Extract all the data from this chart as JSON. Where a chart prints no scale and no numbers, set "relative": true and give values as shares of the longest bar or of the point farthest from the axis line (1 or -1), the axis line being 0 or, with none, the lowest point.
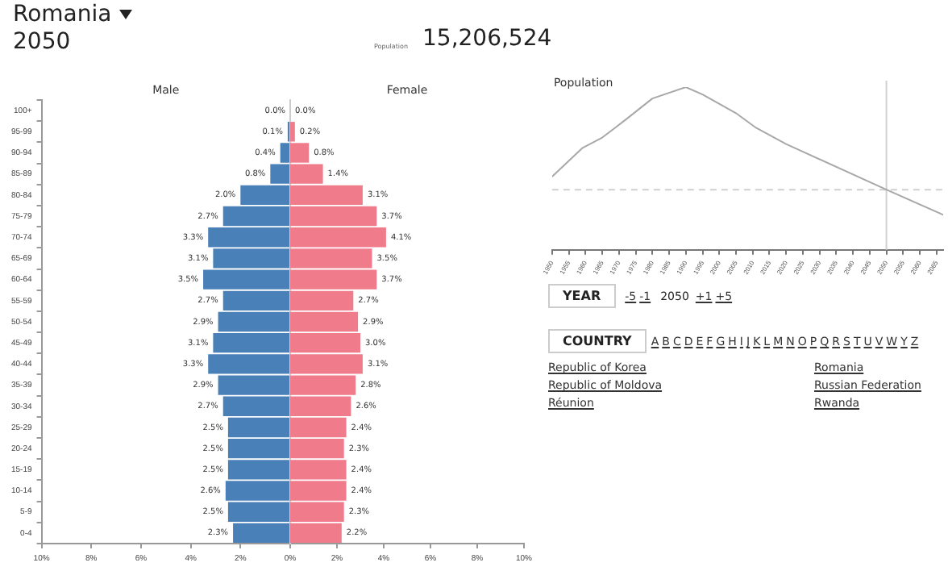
{
  "chart_data": [
    {
      "type": "bar",
      "orientation": "horizontal",
      "title": "Romania",
      "subtitle": "2050",
      "annotations": [
        "Population",
        "15,206,524"
      ],
      "categories": [
        "100+",
        "95-99",
        "90-94",
        "85-89",
        "80-84",
        "75-79",
        "70-74",
        "65-69",
        "60-64",
        "55-59",
        "50-54",
        "45-49",
        "40-44",
        "35-39",
        "30-34",
        "25-29",
        "20-24",
        "15-19",
        "10-14",
        "5-9",
        "0-4"
      ],
      "series": [
        {
          "name": "Male",
          "color": "#4a80b8",
          "values": [
            0.0,
            0.1,
            0.4,
            0.8,
            2.0,
            2.7,
            3.3,
            3.1,
            3.5,
            2.7,
            2.9,
            3.1,
            3.3,
            2.9,
            2.7,
            2.5,
            2.5,
            2.5,
            2.6,
            2.5,
            2.3
          ],
          "value_labels": [
            "0.0%",
            "0.1%",
            "0.4%",
            "0.8%",
            "2.0%",
            "2.7%",
            "3.3%",
            "3.1%",
            "3.5%",
            "2.7%",
            "2.9%",
            "3.1%",
            "3.3%",
            "2.9%",
            "2.7%",
            "2.5%",
            "2.5%",
            "2.5%",
            "2.6%",
            "2.5%",
            "2.3%"
          ]
        }
      ],
      "xlim": [
        10,
        0
      ],
      "xticks": [
        {
          "value": 10,
          "label": "10%"
        },
        {
          "value": 8,
          "label": "8%"
        },
        {
          "value": 6,
          "label": "6%"
        },
        {
          "value": 4,
          "label": "4%"
        },
        {
          "value": 2,
          "label": "2%"
        },
        {
          "value": 0,
          "label": "0%"
        }
      ],
      "grid": false,
      "legend": false
    },
    {
      "type": "bar",
      "orientation": "horizontal",
      "categories": [
        null,
        null,
        null,
        null,
        null,
        null,
        null,
        null,
        null,
        null,
        null,
        null,
        null,
        null,
        null,
        null,
        null,
        null,
        null,
        null,
        null
      ],
      "series": [
        {
          "name": "Female",
          "color": "#ef7b8b",
          "values": [
            0.0,
            0.2,
            0.8,
            1.4,
            3.1,
            3.7,
            4.1,
            3.5,
            3.7,
            2.7,
            2.9,
            3.0,
            3.1,
            2.8,
            2.6,
            2.4,
            2.3,
            2.4,
            2.4,
            2.3,
            2.2
          ],
          "value_labels": [
            "0.0%",
            "0.2%",
            "0.8%",
            "1.4%",
            "3.1%",
            "3.7%",
            "4.1%",
            "3.5%",
            "3.7%",
            "2.7%",
            "2.9%",
            "3.0%",
            "3.1%",
            "2.8%",
            "2.6%",
            "2.4%",
            "2.3%",
            "2.4%",
            "2.4%",
            "2.3%",
            "2.2%"
          ]
        }
      ],
      "xlim": [
        0,
        10
      ],
      "xticks": [
        {
          "value": 2,
          "label": "2%"
        },
        {
          "value": 4,
          "label": "4%"
        },
        {
          "value": 6,
          "label": "6%"
        },
        {
          "value": 8,
          "label": "8%"
        },
        {
          "value": 10,
          "label": "10%"
        }
      ],
      "grid": false,
      "legend": false
    },
    {
      "type": "line",
      "title": "Population",
      "relative": true,
      "color": "#a8a8a8",
      "marker": "none",
      "x": [
        1950,
        1959,
        1965,
        1972,
        1980,
        1990,
        1995,
        2005,
        2011,
        2020,
        2050,
        2067
      ],
      "values": [
        0.45,
        0.625,
        0.69,
        0.8,
        0.93,
        1.0,
        0.955,
        0.84,
        0.75,
        0.65,
        0.37,
        0.215
      ],
      "xlim": [
        1950,
        2067
      ],
      "xticks": [
        1950,
        1955,
        1960,
        1965,
        1970,
        1975,
        1980,
        1985,
        1990,
        1995,
        2000,
        2005,
        2010,
        2015,
        2020,
        2025,
        2030,
        2035,
        2040,
        2045,
        2050,
        2055,
        2060,
        2065
      ],
      "ref_lines": [
        {
          "axis": "x",
          "value": 2050,
          "color": "#d0d0d0",
          "line_style": "solid"
        },
        {
          "axis": "y",
          "value": 0.37,
          "color": "#d0d0d0",
          "line_style": "dashed"
        }
      ],
      "grid": false,
      "legend": false
    },
    {
      "type": "other",
      "annotations": [
        "YEAR",
        "-5",
        "-1",
        "2050",
        "+1",
        "+5",
        "COUNTRY",
        "A",
        "B",
        "C",
        "D",
        "E",
        "F",
        "G",
        "H",
        "I",
        "J",
        "K",
        "L",
        "M",
        "N",
        "O",
        "P",
        "Q",
        "R",
        "S",
        "T",
        "U",
        "V",
        "W",
        "Y",
        "Z",
        "Republic of Korea",
        "Republic of Moldova",
        "Réunion",
        "Romania",
        "Russian Federation",
        "Rwanda"
      ]
    }
  ]
}
